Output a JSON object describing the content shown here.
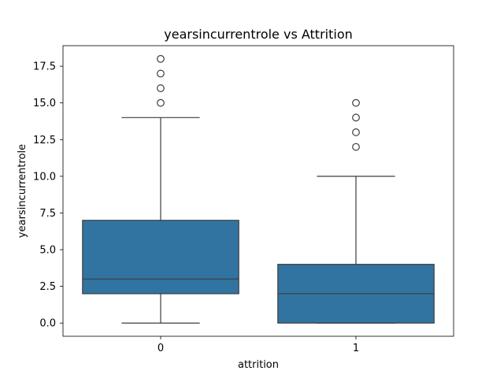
{
  "chart_data": {
    "type": "box",
    "title": "yearsincurrentrole vs Attrition",
    "xlabel": "attrition",
    "ylabel": "yearsincurrentrole",
    "categories": [
      "0",
      "1"
    ],
    "ylim": [
      -0.9,
      18.9
    ],
    "yticks": [
      0.0,
      2.5,
      5.0,
      7.5,
      10.0,
      12.5,
      15.0,
      17.5
    ],
    "ytick_labels": [
      "0.0",
      "2.5",
      "5.0",
      "7.5",
      "10.0",
      "12.5",
      "15.0",
      "17.5"
    ],
    "grid": false,
    "colors": {
      "box_fill": "#3274a1",
      "line": "#3d3d3d"
    },
    "boxes": [
      {
        "category": "0",
        "whisker_low": 0,
        "q1": 2,
        "median": 3,
        "q3": 7,
        "whisker_high": 14,
        "outliers": [
          15,
          16,
          17,
          18
        ]
      },
      {
        "category": "1",
        "whisker_low": 0,
        "q1": 0,
        "median": 2,
        "q3": 4,
        "whisker_high": 10,
        "outliers": [
          12,
          13,
          14,
          15
        ]
      }
    ]
  }
}
